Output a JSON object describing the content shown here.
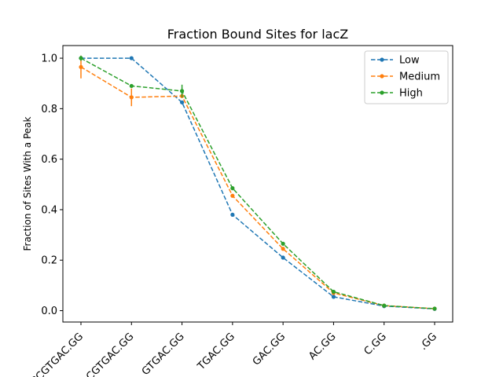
{
  "chart_data": {
    "type": "line",
    "title": "Fraction Bound Sites for lacZ",
    "xlabel": "",
    "ylabel": "Fraction of Sites With a Peak",
    "categories": [
      "CCGTGAC.GG",
      "CGTGAC.GG",
      "GTGAC.GG",
      "TGAC.GG",
      "GAC.GG",
      "AC.GG",
      "C.GG",
      ".GG"
    ],
    "yticks": [
      "0.0",
      "0.2",
      "0.4",
      "0.6",
      "0.8",
      "1.0"
    ],
    "ylim": [
      -0.045,
      1.05
    ],
    "grid": false,
    "legend_position": "top-right",
    "series": [
      {
        "name": "Low",
        "color": "#1f77b4",
        "values": [
          1.0,
          1.0,
          0.825,
          0.38,
          0.21,
          0.055,
          0.018,
          0.007
        ],
        "errors": [
          0,
          0,
          0,
          0,
          0,
          0,
          0,
          0
        ]
      },
      {
        "name": "Medium",
        "color": "#ff7f0e",
        "values": [
          0.965,
          0.845,
          0.85,
          0.455,
          0.245,
          0.07,
          0.02,
          0.008
        ],
        "errors": [
          0.045,
          0.035,
          0,
          0,
          0,
          0,
          0,
          0
        ]
      },
      {
        "name": "High",
        "color": "#2ca02c",
        "values": [
          1.0,
          0.89,
          0.87,
          0.485,
          0.265,
          0.075,
          0.02,
          0.008
        ],
        "errors": [
          0.01,
          0,
          0.025,
          0,
          0,
          0,
          0,
          0
        ]
      }
    ]
  }
}
